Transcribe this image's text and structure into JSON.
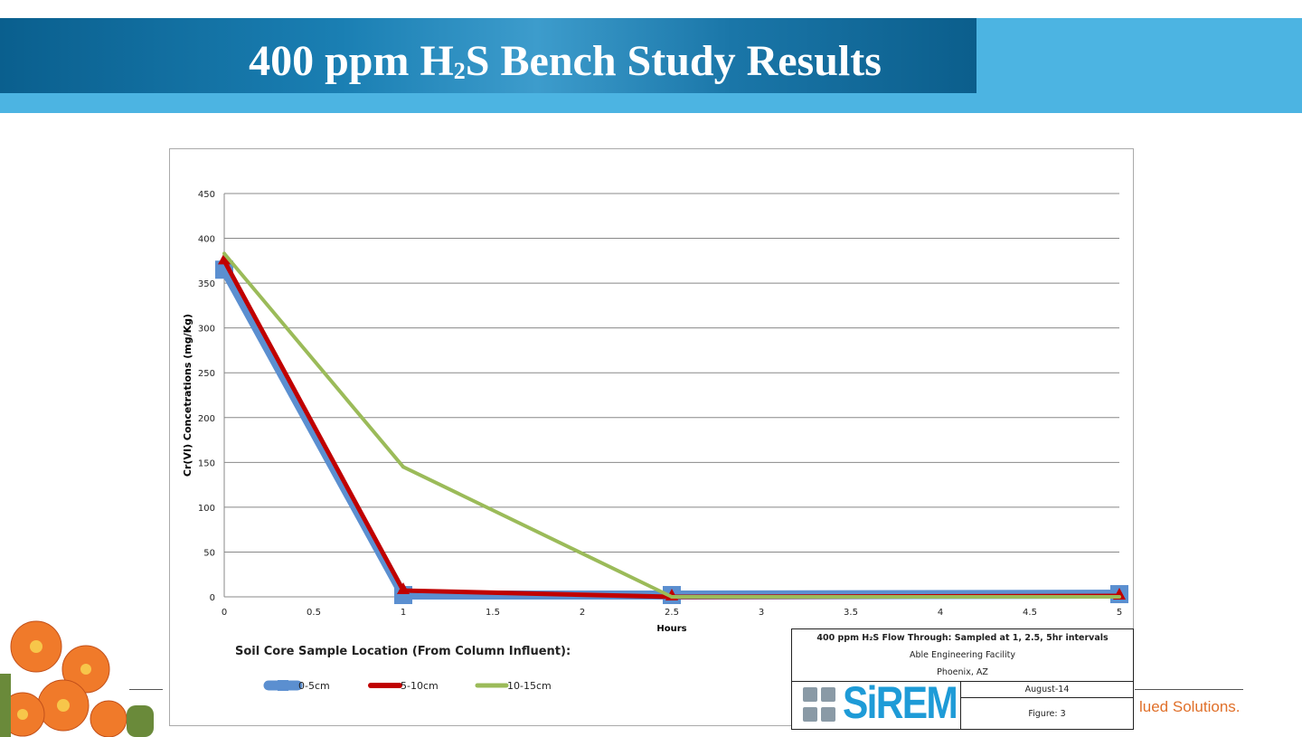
{
  "header": {
    "title_pre": "400 ppm H",
    "title_sub": "2",
    "title_post": "S Bench Study Results"
  },
  "footer": {
    "tagline": "lued Solutions."
  },
  "title_block": {
    "line1": "400 ppm H₂S Flow Through: Sampled at 1, 2.5, 5hr intervals",
    "line2": "Able Engineering Facility",
    "line3": "Phoenix, AZ",
    "date": "August-14",
    "figure": "Figure: 3",
    "logo": "SiREM"
  },
  "colors": {
    "banner": "#0a5f8e",
    "band": "#4cb4e2",
    "series_blue": "#5b8fd0",
    "series_red": "#c00000",
    "series_green": "#9bbb59",
    "tagline": "#e0702a"
  },
  "chart_data": {
    "type": "line",
    "title": "",
    "xlabel": "Hours",
    "ylabel": "Cr(VI) Concetrations (mg/Kg)",
    "xlim": [
      0,
      5
    ],
    "ylim": [
      0,
      450
    ],
    "xticks": [
      "0",
      "0.5",
      "1",
      "1.5",
      "2",
      "2.5",
      "3",
      "3.5",
      "4",
      "4.5",
      "5"
    ],
    "yticks": [
      "0",
      "50",
      "100",
      "150",
      "200",
      "250",
      "300",
      "350",
      "400",
      "450"
    ],
    "grid": true,
    "legend_title": "Soil Core Sample Location (From Column Influent):",
    "legend_position": "bottom-left",
    "series": [
      {
        "name": "0-5cm",
        "x": [
          0,
          1,
          2.5,
          5
        ],
        "values": [
          365,
          2,
          2,
          3
        ],
        "marker": "square"
      },
      {
        "name": "5-10cm",
        "x": [
          0,
          1,
          2.5,
          5
        ],
        "values": [
          375,
          7,
          0,
          1
        ],
        "marker": "triangle"
      },
      {
        "name": "10-15cm",
        "x": [
          0,
          1,
          2.5,
          5
        ],
        "values": [
          383,
          145,
          0,
          0
        ],
        "marker": "none"
      }
    ]
  }
}
